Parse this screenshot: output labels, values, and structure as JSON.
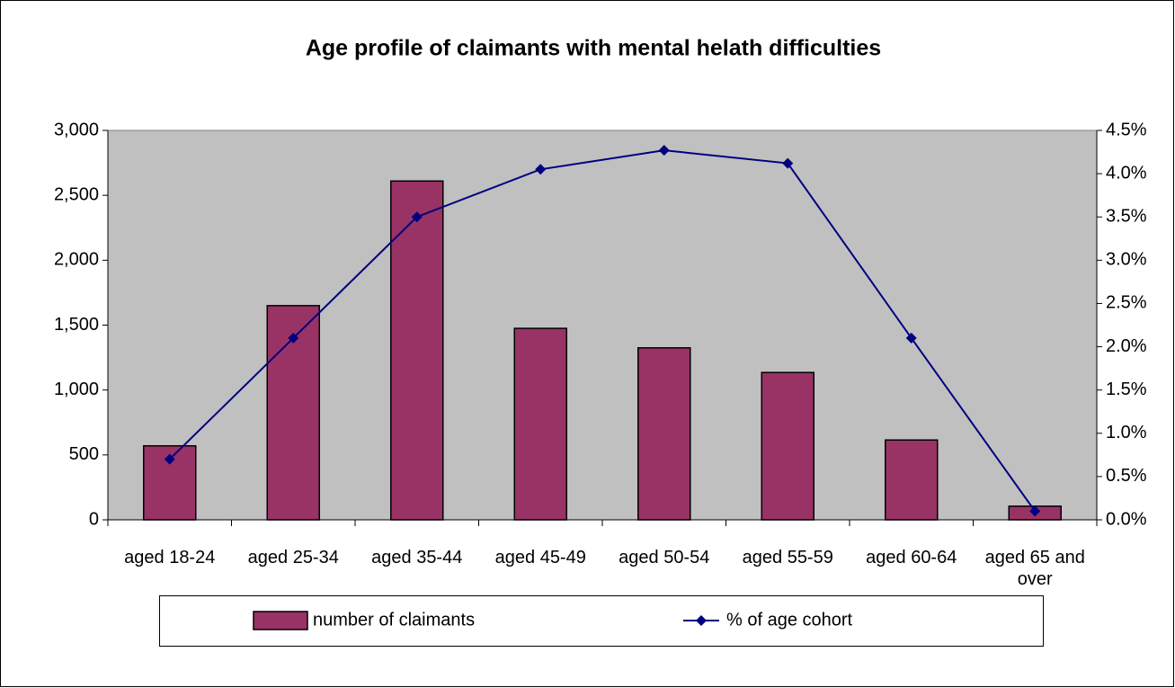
{
  "chart_data": {
    "type": "bar",
    "title": "Age profile of claimants with mental helath difficulties",
    "categories": [
      "aged 18-24",
      "aged 25-34",
      "aged 35-44",
      "aged 45-49",
      "aged 50-54",
      "aged 55-59",
      "aged 60-64",
      "aged 65 and over"
    ],
    "series": [
      {
        "name": "number of claimants",
        "type": "bar",
        "color": "#993366",
        "values": [
          570,
          1650,
          2610,
          1475,
          1325,
          1135,
          615,
          105
        ]
      },
      {
        "name": "% of age cohort",
        "type": "line",
        "axis": "y2",
        "color": "#000080",
        "values": [
          0.7,
          2.1,
          3.5,
          4.05,
          4.27,
          4.12,
          2.1,
          0.1
        ]
      }
    ],
    "ylim": [
      0,
      3000
    ],
    "yticks": [
      0,
      500,
      {
        "value": 1000,
        "label": "1,000"
      },
      {
        "value": 1500,
        "label": "1,500"
      },
      {
        "value": 2000,
        "label": "2,000"
      },
      {
        "value": 2500,
        "label": "2,500"
      },
      {
        "value": 3000,
        "label": "3,000"
      }
    ],
    "y2lim": [
      0,
      4.5
    ],
    "y2ticks": [
      {
        "value": 0,
        "label": "0.0%"
      },
      {
        "value": 0.5,
        "label": "0.5%"
      },
      {
        "value": 1,
        "label": "1.0%"
      },
      {
        "value": 1.5,
        "label": "1.5%"
      },
      {
        "value": 2,
        "label": "2.0%"
      },
      {
        "value": 2.5,
        "label": "2.5%"
      },
      {
        "value": 3,
        "label": "3.0%"
      },
      {
        "value": 3.5,
        "label": "3.5%"
      },
      {
        "value": 4,
        "label": "4.0%"
      },
      {
        "value": 4.5,
        "label": "4.5%"
      }
    ],
    "legend": "bottom",
    "plot_background": "#c0c0c0"
  }
}
